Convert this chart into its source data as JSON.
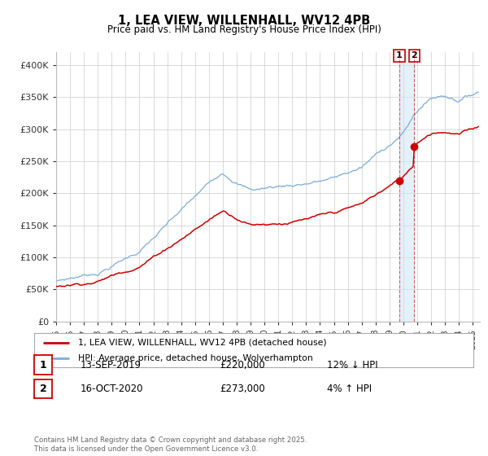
{
  "title": "1, LEA VIEW, WILLENHALL, WV12 4PB",
  "subtitle": "Price paid vs. HM Land Registry's House Price Index (HPI)",
  "ylabel_ticks": [
    "£0",
    "£50K",
    "£100K",
    "£150K",
    "£200K",
    "£250K",
    "£300K",
    "£350K",
    "£400K"
  ],
  "ylim": [
    0,
    420000
  ],
  "xlim_start": 1995.0,
  "xlim_end": 2025.5,
  "hpi_color": "#7aadda",
  "price_color": "#cc0000",
  "transaction1_date": "13-SEP-2019",
  "transaction1_price": "£220,000",
  "transaction1_hpi": "12% ↓ HPI",
  "transaction1_x": 2019.71,
  "transaction1_y": 220000,
  "transaction2_date": "16-OCT-2020",
  "transaction2_price": "£273,000",
  "transaction2_hpi": "4% ↑ HPI",
  "transaction2_x": 2020.79,
  "transaction2_y": 273000,
  "legend_label_price": "1, LEA VIEW, WILLENHALL, WV12 4PB (detached house)",
  "legend_label_hpi": "HPI: Average price, detached house, Wolverhampton",
  "footnote": "Contains HM Land Registry data © Crown copyright and database right 2025.\nThis data is licensed under the Open Government Licence v3.0.",
  "background_color": "#ffffff",
  "grid_color": "#cccccc"
}
